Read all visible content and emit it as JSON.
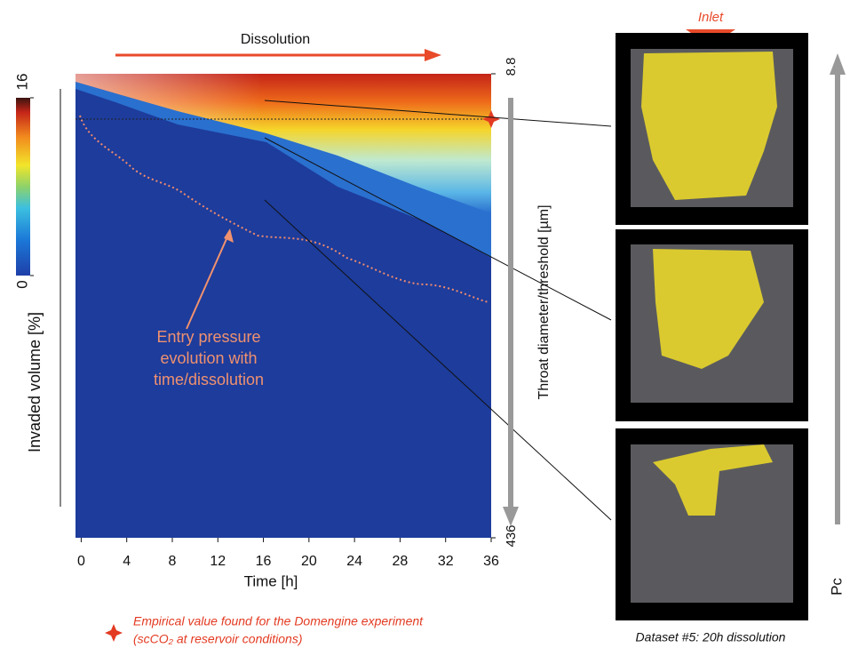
{
  "chart_data": {
    "type": "contour",
    "title": "Dissolution",
    "x_label": "Time [h]",
    "xlim": [
      -0.5,
      36
    ],
    "xticks": [
      0,
      4,
      8,
      12,
      16,
      20,
      24,
      28,
      32,
      36
    ],
    "y_label": "Invaded volume [%]",
    "colorbar": {
      "lim": [
        0,
        16
      ],
      "ticks": [
        0,
        16
      ]
    },
    "y2_label": "Throat diameter/threshold [µm]",
    "y2lim": [
      8.8,
      436
    ],
    "y2ticks": [
      8.8,
      436
    ],
    "annotation": [
      "Entry pressure",
      "evolution with",
      "time/dissolution"
    ],
    "legend": [
      "Empirical value found for the Domengine experiment",
      "(scCO₂ at reservoir conditions)"
    ],
    "panel_inlet": "Inlet",
    "panel_caption": "Dataset #5: 20h dissolution",
    "pressure_axis_label": "Pc"
  }
}
